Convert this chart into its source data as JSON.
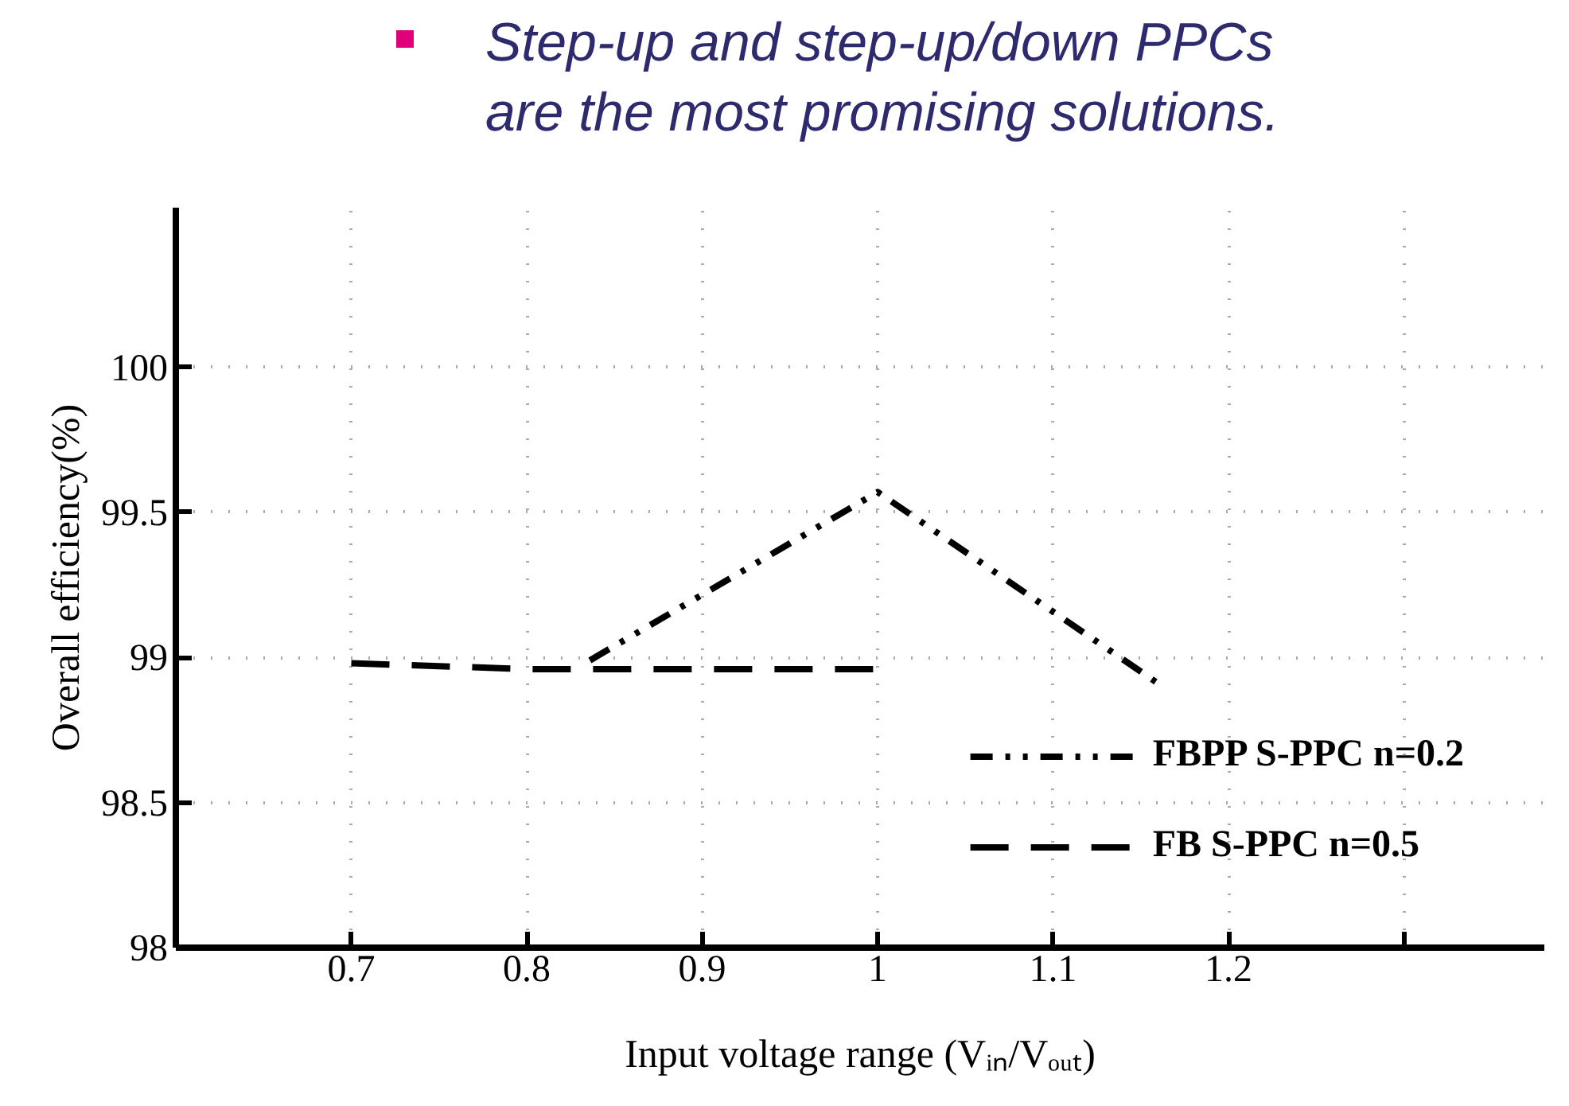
{
  "chart_data": {
    "type": "line",
    "title": "Step-up and step-up/down PPCs\nare the most promising solutions.",
    "xlabel": "Input voltage range (Vᵢₙ/Vₒᵤₜ)",
    "ylabel": "Overall efficiency(%)",
    "xlim": [
      0.6,
      1.38
    ],
    "ylim": [
      98,
      100.55
    ],
    "xticks": [
      0.7,
      0.8,
      0.9,
      1,
      1.1,
      1.2,
      {
        "value": 1.3,
        "label": null
      }
    ],
    "yticks": [
      98,
      98.5,
      99,
      99.5,
      100
    ],
    "grid": true,
    "legend": "bottom right",
    "series": [
      {
        "name": "FBPP S-PPC n=0.2",
        "color": "#000000",
        "line_style": "dotted",
        "x": [
          0.836,
          1.0,
          1.16
        ],
        "values": [
          98.99,
          99.57,
          98.91
        ]
      },
      {
        "name": "FB S-PPC n=0.5",
        "color": "#000000",
        "line_style": "dashed",
        "x": [
          0.7,
          0.8,
          0.9,
          1.0
        ],
        "values": [
          98.98,
          98.96,
          98.96,
          98.96
        ]
      }
    ]
  }
}
